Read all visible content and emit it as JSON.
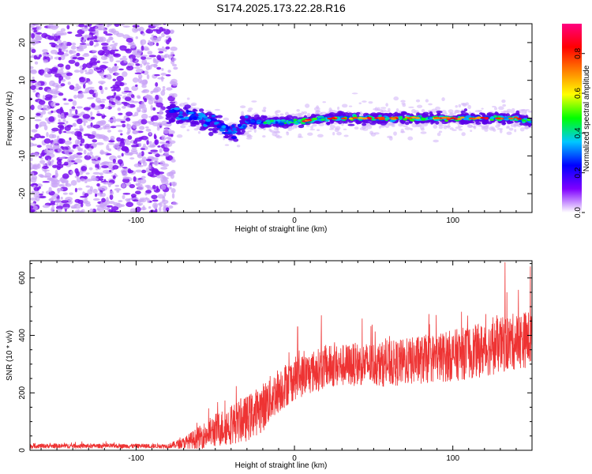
{
  "figure": {
    "title": "S174.2025.173.22.28.R16"
  },
  "chart_data": [
    {
      "type": "heatmap",
      "xlabel": "Height of straight line (km)",
      "ylabel": "Frequency (Hz)",
      "xlim": [
        -167,
        150
      ],
      "ylim": [
        -25,
        25
      ],
      "xticks": [
        -100,
        0,
        100
      ],
      "yticks": [
        -20,
        -10,
        0,
        10,
        20
      ],
      "colorbar": {
        "label": "Normalized spectral amplitude",
        "range": [
          0,
          0.95
        ],
        "ticks": [
          0.0,
          0.2,
          0.4,
          0.6,
          0.8
        ],
        "tick_labels": [
          "0.0",
          "0.2",
          "0.4",
          "0.6",
          "0.8"
        ],
        "colormap": [
          "#ffffff",
          "#7f00ff",
          "#0000ff",
          "#00c8ff",
          "#00ff00",
          "#ffff00",
          "#ff8000",
          "#ff0000",
          "#ff0080"
        ]
      },
      "ridge": {
        "x": [
          -167,
          -100,
          -90,
          -80,
          -70,
          -60,
          -50,
          -40,
          -35,
          -30,
          -20,
          -10,
          0,
          10,
          20,
          40,
          60,
          80,
          100,
          120,
          140,
          150
        ],
        "frequency": [
          0,
          0,
          0,
          1.5,
          1.0,
          0,
          -1,
          -4,
          -3,
          -1,
          -1,
          -1,
          -1,
          -0.5,
          0,
          0,
          0,
          0,
          0,
          0,
          0,
          -1
        ]
      },
      "noise_region": {
        "x_range": [
          -167,
          -75
        ],
        "frequency_range": [
          -25,
          25
        ]
      }
    },
    {
      "type": "line",
      "xlabel": "Height of straight line (km)",
      "ylabel": "SNR (10 * v/v)",
      "xlim": [
        -167,
        150
      ],
      "ylim": [
        0,
        660
      ],
      "xticks": [
        -100,
        0,
        100
      ],
      "yticks": [
        0,
        200,
        400,
        600
      ],
      "color": "#ee3333",
      "trend": {
        "x": [
          -167,
          -80,
          -70,
          -60,
          -50,
          -40,
          -30,
          -20,
          -10,
          0,
          10,
          20,
          40,
          60,
          80,
          100,
          120,
          140,
          150
        ],
        "mean": [
          15,
          15,
          25,
          45,
          70,
          90,
          110,
          150,
          210,
          250,
          270,
          290,
          300,
          300,
          315,
          330,
          350,
          380,
          390
        ],
        "noise": [
          8,
          8,
          20,
          40,
          60,
          70,
          80,
          85,
          80,
          75,
          75,
          75,
          75,
          80,
          85,
          90,
          95,
          100,
          100
        ]
      },
      "peaks": [
        {
          "x": 2,
          "y": 430
        },
        {
          "x": 17,
          "y": 470
        },
        {
          "x": 133,
          "y": 655
        },
        {
          "x": 149,
          "y": 640
        }
      ]
    }
  ]
}
